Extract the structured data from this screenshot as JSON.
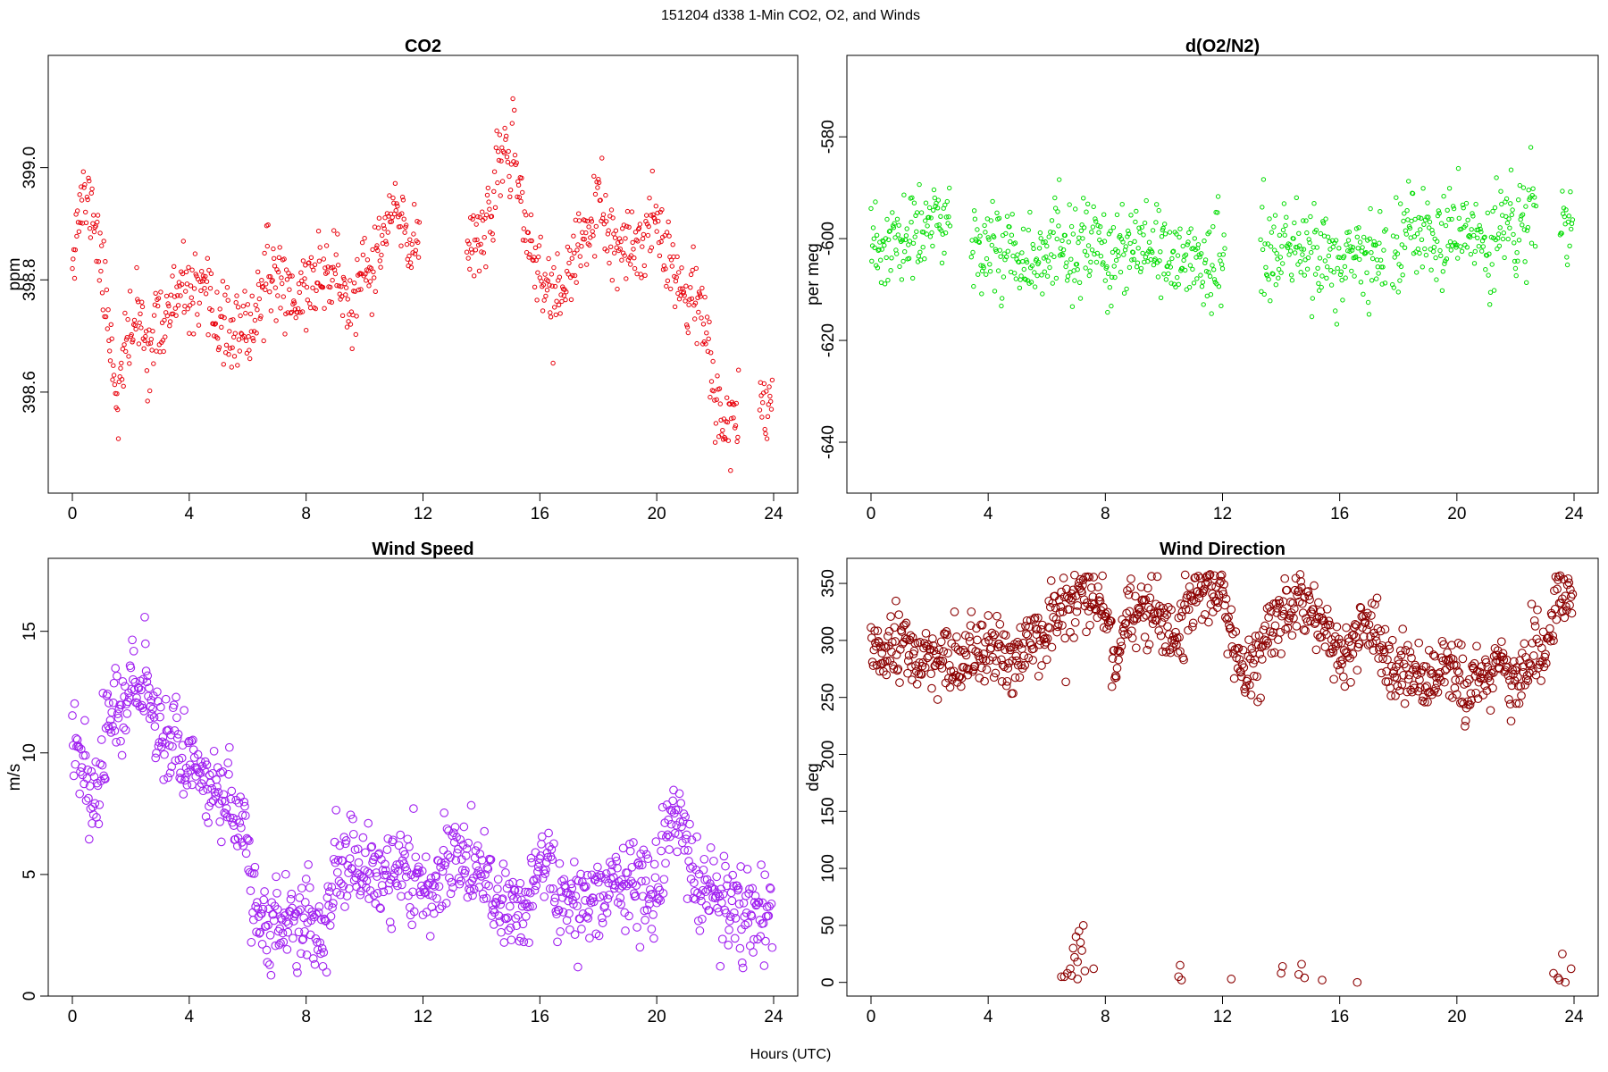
{
  "figure": {
    "suptitle": "151204   d338   1-Min CO2, O2, and Winds",
    "xlabel": "Hours (UTC)"
  },
  "chart_data": [
    {
      "id": "co2",
      "type": "scatter",
      "title": "CO2",
      "xlabel": "Hours (UTC)",
      "ylabel": "ppm",
      "xlim": [
        0,
        24
      ],
      "ylim": [
        398.42,
        399.2
      ],
      "xticks": [
        0,
        4,
        8,
        12,
        16,
        20,
        24
      ],
      "yticks": [
        398.6,
        398.8,
        399.0
      ],
      "ytick_labels": [
        "398.6",
        "398.8",
        "399.0"
      ],
      "color": "#e8000b",
      "marker_size": "small",
      "trend": [
        [
          0,
          398.86
        ],
        [
          0.3,
          398.94
        ],
        [
          0.7,
          398.93
        ],
        [
          1.0,
          398.82
        ],
        [
          1.3,
          398.7
        ],
        [
          1.55,
          398.58
        ],
        [
          1.8,
          398.67
        ],
        [
          2.2,
          398.74
        ],
        [
          2.6,
          398.68
        ],
        [
          3.0,
          398.72
        ],
        [
          3.5,
          398.76
        ],
        [
          3.9,
          398.78
        ],
        [
          4.5,
          398.76
        ],
        [
          5.0,
          398.73
        ],
        [
          5.5,
          398.7
        ],
        [
          6.0,
          398.7
        ],
        [
          6.4,
          398.77
        ],
        [
          6.8,
          398.81
        ],
        [
          7.2,
          398.8
        ],
        [
          7.6,
          398.76
        ],
        [
          8.0,
          398.79
        ],
        [
          8.5,
          398.81
        ],
        [
          9.0,
          398.82
        ],
        [
          9.5,
          398.74
        ],
        [
          10.0,
          398.8
        ],
        [
          10.5,
          398.85
        ],
        [
          11.0,
          398.93
        ],
        [
          11.5,
          398.86
        ],
        [
          11.9,
          398.88
        ],
        [
          12.2,
          null
        ],
        [
          13.3,
          null
        ],
        [
          13.5,
          398.87
        ],
        [
          14.0,
          398.89
        ],
        [
          14.4,
          398.92
        ],
        [
          14.8,
          399.05
        ],
        [
          15.2,
          398.98
        ],
        [
          15.6,
          398.88
        ],
        [
          16.0,
          398.8
        ],
        [
          16.5,
          398.77
        ],
        [
          17.0,
          398.8
        ],
        [
          17.5,
          398.88
        ],
        [
          18.0,
          398.93
        ],
        [
          18.5,
          398.86
        ],
        [
          19.0,
          398.84
        ],
        [
          19.5,
          398.87
        ],
        [
          20.0,
          398.92
        ],
        [
          20.5,
          398.84
        ],
        [
          21.0,
          398.76
        ],
        [
          21.5,
          398.78
        ],
        [
          22.0,
          398.57
        ],
        [
          22.5,
          398.55
        ],
        [
          22.8,
          398.57
        ],
        [
          23.0,
          null
        ],
        [
          23.4,
          null
        ],
        [
          23.5,
          398.58
        ],
        [
          23.9,
          398.6
        ]
      ],
      "noise_sd": 0.035,
      "gaps": [
        [
          12.2,
          13.3
        ],
        [
          22.9,
          23.4
        ]
      ]
    },
    {
      "id": "o2",
      "type": "scatter",
      "title": "d(O2/N2)",
      "xlabel": "Hours (UTC)",
      "ylabel": "per meg",
      "xlim": [
        0,
        24
      ],
      "ylim": [
        -650,
        -564
      ],
      "xticks": [
        0,
        4,
        8,
        12,
        16,
        20,
        24
      ],
      "yticks": [
        -640,
        -620,
        -600,
        -580
      ],
      "ytick_labels": [
        "-640",
        "-620",
        "-600",
        "-580"
      ],
      "color": "#00dc00",
      "marker_size": "small",
      "trend": [
        [
          0,
          -603
        ],
        [
          1,
          -601
        ],
        [
          2,
          -598
        ],
        [
          2.6,
          -596
        ],
        [
          3.5,
          -601
        ],
        [
          5,
          -602
        ],
        [
          6,
          -604
        ],
        [
          7,
          -602
        ],
        [
          8,
          -603
        ],
        [
          9,
          -603
        ],
        [
          10,
          -604
        ],
        [
          11,
          -604
        ],
        [
          12,
          -604
        ],
        [
          13.3,
          -604
        ],
        [
          14,
          -602
        ],
        [
          15,
          -603
        ],
        [
          16,
          -604
        ],
        [
          17,
          -605
        ],
        [
          18,
          -601
        ],
        [
          19,
          -600
        ],
        [
          20,
          -599
        ],
        [
          21,
          -601
        ],
        [
          22,
          -597
        ],
        [
          24,
          -597
        ]
      ],
      "noise_sd": 4.5,
      "gaps": [
        [
          2.7,
          3.4
        ],
        [
          12.1,
          13.3
        ],
        [
          17.6,
          17.8
        ],
        [
          22.7,
          23.5
        ]
      ]
    },
    {
      "id": "wspd",
      "type": "scatter",
      "title": "Wind Speed",
      "xlabel": "Hours (UTC)",
      "ylabel": "m/s",
      "xlim": [
        0,
        24
      ],
      "ylim": [
        0,
        18
      ],
      "xticks": [
        0,
        4,
        8,
        12,
        16,
        20,
        24
      ],
      "yticks": [
        0,
        5,
        10,
        15
      ],
      "ytick_labels": [
        "0",
        "5",
        "10",
        "15"
      ],
      "color": "#a020f0",
      "marker_size": "large",
      "trend": [
        [
          0,
          10.5
        ],
        [
          0.4,
          10.0
        ],
        [
          0.7,
          7.8
        ],
        [
          0.9,
          8.2
        ],
        [
          1.2,
          11.5
        ],
        [
          1.8,
          12.5
        ],
        [
          2.5,
          12.8
        ],
        [
          3.0,
          11.0
        ],
        [
          3.5,
          10.5
        ],
        [
          4.0,
          9.8
        ],
        [
          4.5,
          9.0
        ],
        [
          5.0,
          8.3
        ],
        [
          5.5,
          7.5
        ],
        [
          5.9,
          6.8
        ],
        [
          6.2,
          4.0
        ],
        [
          6.6,
          3.0
        ],
        [
          7.0,
          2.8
        ],
        [
          7.5,
          3.3
        ],
        [
          8.0,
          3.5
        ],
        [
          8.5,
          2.0
        ],
        [
          9.0,
          5.0
        ],
        [
          9.5,
          5.5
        ],
        [
          10.0,
          5.2
        ],
        [
          10.5,
          4.8
        ],
        [
          11.0,
          5.0
        ],
        [
          11.5,
          5.2
        ],
        [
          12.0,
          4.5
        ],
        [
          12.5,
          4.8
        ],
        [
          13.0,
          6.0
        ],
        [
          13.5,
          5.5
        ],
        [
          14.0,
          4.8
        ],
        [
          14.5,
          4.0
        ],
        [
          15.0,
          3.8
        ],
        [
          15.5,
          3.5
        ],
        [
          16.0,
          5.8
        ],
        [
          16.5,
          4.5
        ],
        [
          17.0,
          3.5
        ],
        [
          17.5,
          4.0
        ],
        [
          18.0,
          4.3
        ],
        [
          18.5,
          4.5
        ],
        [
          19.0,
          4.8
        ],
        [
          19.5,
          4.5
        ],
        [
          20.0,
          4.5
        ],
        [
          20.5,
          7.5
        ],
        [
          21.0,
          6.5
        ],
        [
          21.5,
          4.0
        ],
        [
          22.0,
          4.0
        ],
        [
          22.5,
          3.6
        ],
        [
          23.0,
          3.2
        ],
        [
          23.5,
          3.5
        ],
        [
          24.0,
          3.6
        ]
      ],
      "noise_sd": 0.9,
      "gaps": []
    },
    {
      "id": "wdir",
      "type": "scatter",
      "title": "Wind Direction",
      "xlabel": "Hours (UTC)",
      "ylabel": "deg",
      "xlim": [
        0,
        24
      ],
      "ylim": [
        -12,
        372
      ],
      "xticks": [
        0,
        4,
        8,
        12,
        16,
        20,
        24
      ],
      "yticks": [
        0,
        50,
        100,
        150,
        200,
        250,
        300,
        350
      ],
      "ytick_labels": [
        "0",
        "50",
        "100",
        "150",
        "200",
        "250",
        "300",
        "350"
      ],
      "color": "#8b0000",
      "marker_size": "large",
      "trend": [
        [
          0,
          285
        ],
        [
          1,
          292
        ],
        [
          2,
          285
        ],
        [
          3,
          282
        ],
        [
          4,
          290
        ],
        [
          5,
          280
        ],
        [
          5.5,
          300
        ],
        [
          6,
          310
        ],
        [
          6.4,
          325
        ],
        [
          7,
          335
        ],
        [
          7.5,
          340
        ],
        [
          8,
          325
        ],
        [
          8.4,
          275
        ],
        [
          8.8,
          320
        ],
        [
          9.5,
          330
        ],
        [
          10,
          320
        ],
        [
          10.5,
          300
        ],
        [
          11,
          330
        ],
        [
          11.5,
          345
        ],
        [
          12,
          340
        ],
        [
          12.3,
          305
        ],
        [
          12.8,
          265
        ],
        [
          13.2,
          280
        ],
        [
          13.6,
          315
        ],
        [
          14,
          325
        ],
        [
          14.5,
          335
        ],
        [
          15,
          320
        ],
        [
          15.5,
          305
        ],
        [
          16,
          285
        ],
        [
          16.5,
          300
        ],
        [
          17,
          320
        ],
        [
          17.5,
          290
        ],
        [
          18,
          275
        ],
        [
          18.5,
          270
        ],
        [
          19,
          265
        ],
        [
          19.5,
          275
        ],
        [
          20,
          270
        ],
        [
          20.5,
          260
        ],
        [
          21,
          265
        ],
        [
          21.5,
          290
        ],
        [
          22,
          260
        ],
        [
          22.5,
          280
        ],
        [
          23,
          300
        ],
        [
          23.5,
          340
        ],
        [
          24,
          350
        ]
      ],
      "noise_sd": 15,
      "low_points": [
        [
          6.5,
          5
        ],
        [
          6.6,
          5
        ],
        [
          6.7,
          8
        ],
        [
          6.8,
          12
        ],
        [
          6.85,
          6
        ],
        [
          6.9,
          30
        ],
        [
          6.95,
          22
        ],
        [
          7.0,
          40
        ],
        [
          7.05,
          18
        ],
        [
          7.1,
          45
        ],
        [
          7.15,
          35
        ],
        [
          7.2,
          28
        ],
        [
          7.25,
          50
        ],
        [
          7.3,
          10
        ],
        [
          7.05,
          3
        ],
        [
          7.6,
          12
        ],
        [
          10.5,
          5
        ],
        [
          10.55,
          15
        ],
        [
          10.6,
          2
        ],
        [
          12.3,
          3
        ],
        [
          14.0,
          8
        ],
        [
          14.05,
          14
        ],
        [
          14.6,
          7
        ],
        [
          14.7,
          16
        ],
        [
          14.8,
          4
        ],
        [
          15.4,
          2
        ],
        [
          16.6,
          0
        ],
        [
          23.3,
          8
        ],
        [
          23.45,
          4
        ],
        [
          23.5,
          2
        ],
        [
          23.6,
          25
        ],
        [
          23.7,
          0
        ],
        [
          23.9,
          12
        ]
      ],
      "gaps": []
    }
  ]
}
